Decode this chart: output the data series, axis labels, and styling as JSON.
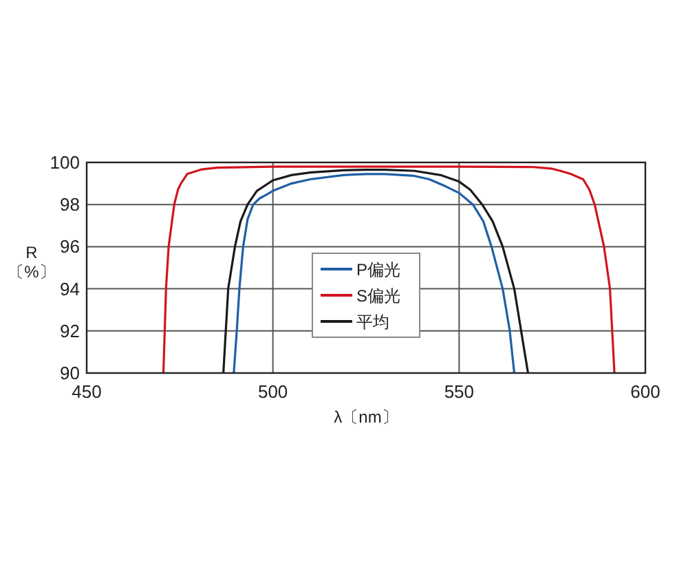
{
  "chart_data": {
    "type": "line",
    "xlabel": "λ〔nm〕",
    "ylabel": "R\n〔%〕",
    "xlim": [
      450,
      600
    ],
    "xticks": [
      450,
      500,
      550,
      600
    ],
    "ylim": [
      90,
      100
    ],
    "yticks": [
      90,
      92,
      94,
      96,
      98,
      100
    ],
    "grid": true,
    "legend": "center",
    "series": [
      {
        "name": "P偏光",
        "color": "#1f5fa6",
        "x": [
          489.5,
          490.3,
          491.0,
          492.0,
          493.2,
          494.7,
          496.5,
          498.1,
          500,
          505,
          510,
          519,
          525,
          530,
          537.7,
          542,
          546.3,
          550,
          553.7,
          556.5,
          558.7,
          561.7,
          563.6,
          564.8
        ],
        "values": [
          90,
          92,
          94,
          96,
          97.3,
          98.0,
          98.3,
          98.45,
          98.65,
          99.0,
          99.2,
          99.4,
          99.45,
          99.45,
          99.37,
          99.2,
          98.87,
          98.55,
          98.0,
          97.2,
          96,
          94,
          92,
          90
        ]
      },
      {
        "name": "S偏光",
        "color": "#d2141e",
        "x": [
          470.6,
          471.3,
          472.0,
          473.5,
          474.5,
          475.3,
          477,
          480.9,
          485,
          500,
          550,
          570,
          575,
          577.2,
          580,
          583.3,
          585,
          586.4,
          588.9,
          590.5,
          591.7
        ],
        "values": [
          90,
          94,
          96,
          98,
          98.7,
          99.0,
          99.45,
          99.67,
          99.75,
          99.8,
          99.8,
          99.78,
          99.7,
          99.6,
          99.45,
          99.2,
          98.7,
          98.0,
          96,
          94,
          90
        ]
      },
      {
        "name": "平均",
        "color": "#1a1a1a",
        "x": [
          486.7,
          488.0,
          489.8,
          491.3,
          493.2,
          495.7,
          500,
          505,
          510,
          519,
          525,
          530,
          538,
          545,
          550,
          553,
          556.2,
          559,
          561.7,
          564.8,
          568.5
        ],
        "values": [
          90,
          94,
          96,
          97.2,
          98.0,
          98.65,
          99.15,
          99.4,
          99.52,
          99.63,
          99.65,
          99.65,
          99.6,
          99.4,
          99.09,
          98.7,
          98.0,
          97.2,
          96,
          94,
          90
        ]
      }
    ]
  }
}
